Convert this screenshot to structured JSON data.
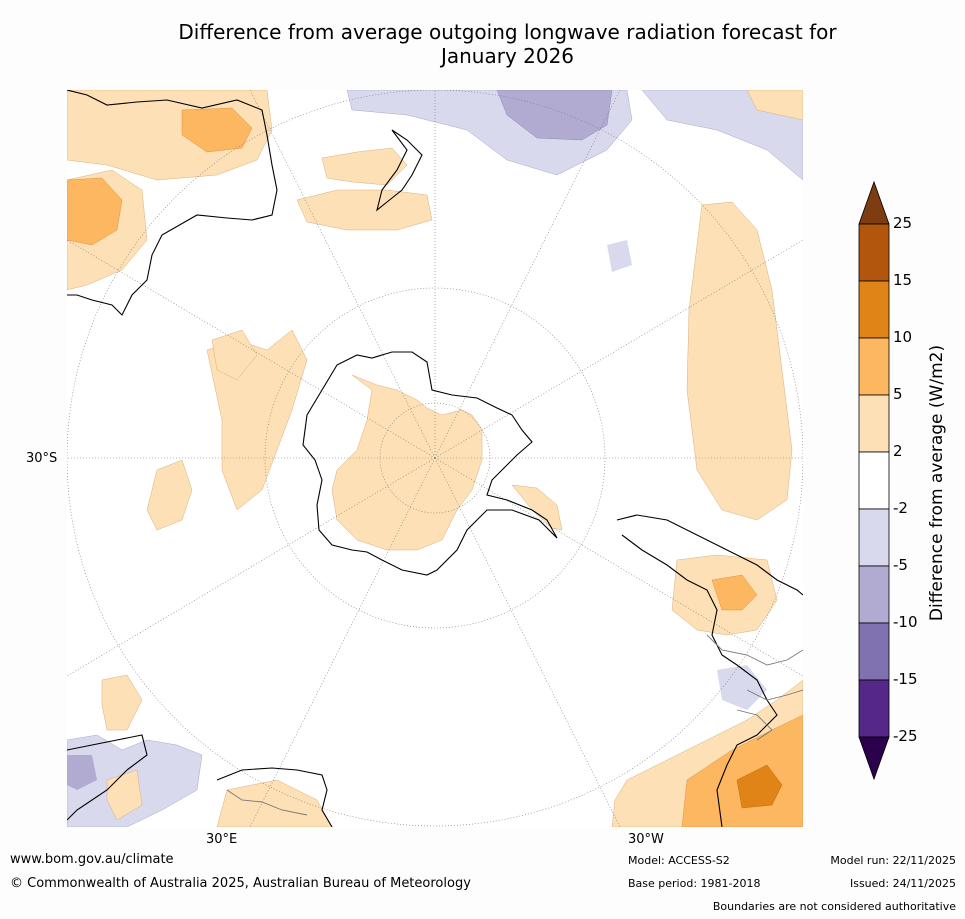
{
  "title_line1": "Difference from average outgoing longwave radiation forecast for",
  "title_line2": "January 2026",
  "axis_labels": {
    "lat": "30°S",
    "lon_east": "30°E",
    "lon_west": "30°W"
  },
  "colorbar": {
    "title": "Difference from average (W/m2)",
    "levels": [
      "25",
      "15",
      "10",
      "5",
      "2",
      "-2",
      "-5",
      "-10",
      "-15",
      "-25"
    ],
    "colors": [
      "#7e3d10",
      "#b2560e",
      "#e08418",
      "#fdb761",
      "#fde0b6",
      "#ffffff",
      "#d8d9ec",
      "#b1abd2",
      "#8071b1",
      "#542788",
      "#2d004b"
    ]
  },
  "footer": {
    "url": "www.bom.gov.au/climate",
    "copyright": "© Commonwealth of Australia 2025, Australian Bureau of Meteorology",
    "model": "Model: ACCESS-S2",
    "base_period": "Base period: 1981-2018",
    "model_run": "Model run: 22/11/2025",
    "issued": "Issued: 24/11/2025",
    "disclaimer": "Boundaries are not considered authoritative"
  }
}
